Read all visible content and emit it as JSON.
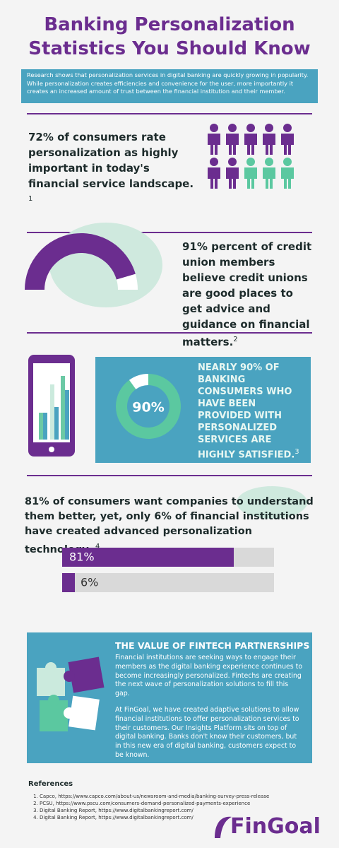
{
  "header": {
    "title": "Banking Personalization Statistics You Should Know",
    "intro": "Research shows that personalization services in digital banking are quickly growing in popularity. While personalization creates efficiencies and convenience for the user, more importantly it creates an increased amount of trust between the financial institution and their member."
  },
  "stat1": {
    "text": "72% of consumers rate personalization as highly important in today's financial service landscape.",
    "ref": "1",
    "icon_count": 10,
    "highlighted_count": 7
  },
  "stat2": {
    "text": "91% percent of credit union members believe credit unions are good places to get advice and guidance on financial matters.",
    "ref": "2",
    "value": 91,
    "range": [
      0,
      100
    ]
  },
  "stat3": {
    "text": "NEARLY 90% OF BANKING CONSUMERS WHO HAVE BEEN PROVIDED WITH PERSONALIZED SERVICES ARE HIGHLY SATISFIED.",
    "ref": "3",
    "donut_label": "90%",
    "value": 90,
    "range": [
      0,
      100
    ]
  },
  "stat4": {
    "text": "81% of consumers want companies to understand them better, yet, only 6% of financial institutions have created advanced personalization technology.",
    "ref": "4",
    "xlim": [
      0,
      100
    ],
    "bars": [
      {
        "label": "81%",
        "value": 81
      },
      {
        "label": "6%",
        "value": 6
      }
    ]
  },
  "partnerships": {
    "title": "THE VALUE OF FINTECH PARTNERSHIPS",
    "paragraphs": [
      "Financial institutions are seeking ways to engage their members as the digital banking experience continues to become increasingly personalized. Fintechs are creating the next wave of personalization solutions to fill this gap.",
      "At FinGoal, we have created adaptive solutions to allow financial institutions to offer personalization services to their customers. Our Insights Platform sits on top of digital banking. Banks don't know their customers, but in this new era of digital banking, customers expect to be known."
    ]
  },
  "references": {
    "title": "References",
    "items": [
      "Capco, https://www.capco.com/about-us/newsroom-and-media/banking-survey-press-release",
      "PCSU, https://www.pscu.com/consumers-demand-personalized-payments-experience",
      "Digital Banking Report, https://www.digitalbankingreport.com/",
      "Digital Banking Report, https://www.digitalbankingreport.com/"
    ]
  },
  "logo": "FinGoal"
}
